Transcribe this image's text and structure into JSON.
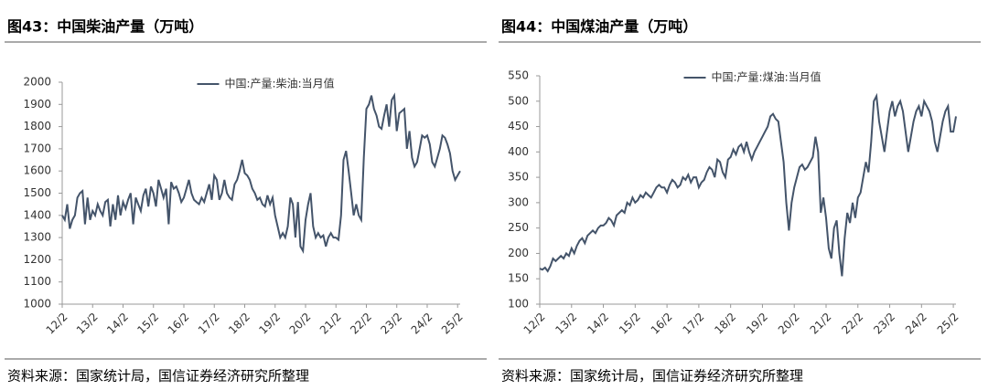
{
  "chart_data": [
    {
      "type": "line",
      "title": "图43：中国柴油产量（万吨）",
      "source": "资料来源：国家统计局，国信证券经济研究所整理",
      "categories": [
        "12/2",
        null,
        null,
        null,
        null,
        null,
        null,
        null,
        null,
        null,
        null,
        null,
        "13/2",
        null,
        null,
        null,
        null,
        null,
        null,
        null,
        null,
        null,
        null,
        null,
        "14/2",
        null,
        null,
        null,
        null,
        null,
        null,
        null,
        null,
        null,
        null,
        null,
        "15/2",
        null,
        null,
        null,
        null,
        null,
        null,
        null,
        null,
        null,
        null,
        null,
        "16/2",
        null,
        null,
        null,
        null,
        null,
        null,
        null,
        null,
        null,
        null,
        null,
        "17/2",
        null,
        null,
        null,
        null,
        null,
        null,
        null,
        null,
        null,
        null,
        null,
        "18/2",
        null,
        null,
        null,
        null,
        null,
        null,
        null,
        null,
        null,
        null,
        null,
        "19/2",
        null,
        null,
        null,
        null,
        null,
        null,
        null,
        null,
        null,
        null,
        null,
        "20/2",
        null,
        null,
        null,
        null,
        null,
        null,
        null,
        null,
        null,
        null,
        null,
        "21/2",
        null,
        null,
        null,
        null,
        null,
        null,
        null,
        null,
        null,
        null,
        null,
        "22/2",
        null,
        null,
        null,
        null,
        null,
        null,
        null,
        null,
        null,
        null,
        null,
        "23/2",
        null,
        null,
        null,
        null,
        null,
        null,
        null,
        null,
        null,
        null,
        null,
        "24/2",
        null,
        null,
        null,
        null,
        null,
        null,
        null,
        null,
        null,
        null,
        null,
        "25/2",
        null
      ],
      "series": [
        {
          "name": "中国:产量:柴油:当月值",
          "color": "#44546a",
          "values": [
            1400,
            1380,
            1450,
            1340,
            1380,
            1400,
            1480,
            1500,
            1510,
            1360,
            1480,
            1380,
            1420,
            1400,
            1450,
            1420,
            1400,
            1460,
            1470,
            1350,
            1450,
            1380,
            1490,
            1400,
            1460,
            1430,
            1470,
            1500,
            1360,
            1480,
            1450,
            1420,
            1490,
            1520,
            1440,
            1530,
            1500,
            1440,
            1560,
            1520,
            1480,
            1520,
            1360,
            1550,
            1520,
            1530,
            1500,
            1460,
            1480,
            1520,
            1560,
            1500,
            1470,
            1460,
            1450,
            1480,
            1460,
            1500,
            1540,
            1470,
            1580,
            1560,
            1470,
            1500,
            1560,
            1500,
            1480,
            1470,
            1540,
            1560,
            1600,
            1650,
            1590,
            1580,
            1560,
            1520,
            1500,
            1470,
            1480,
            1450,
            1440,
            1490,
            1450,
            1480,
            1400,
            1350,
            1300,
            1320,
            1300,
            1350,
            1480,
            1450,
            1300,
            1460,
            1260,
            1240,
            1380,
            1450,
            1500,
            1350,
            1300,
            1320,
            1300,
            1310,
            1260,
            1300,
            1320,
            1300,
            1300,
            1290,
            1400,
            1650,
            1690,
            1600,
            1500,
            1400,
            1450,
            1400,
            1380,
            1660,
            1880,
            1900,
            1940,
            1880,
            1850,
            1800,
            1790,
            1850,
            1900,
            1800,
            1920,
            1940,
            1780,
            1860,
            1870,
            1880,
            1700,
            1780,
            1660,
            1620,
            1640,
            1700,
            1760,
            1750,
            1760,
            1720,
            1640,
            1620,
            1660,
            1700,
            1760,
            1750,
            1720,
            1680,
            1600,
            1560,
            1580,
            1600
          ]
        }
      ],
      "ylim": [
        1000,
        2000
      ],
      "yticks": [
        1000,
        1100,
        1200,
        1300,
        1400,
        1500,
        1600,
        1700,
        1800,
        1900,
        2000
      ]
    },
    {
      "type": "line",
      "title": "图44：中国煤油产量（万吨）",
      "source": "资料来源：国家统计局，国信证券经济研究所整理",
      "categories": [
        "12/2",
        null,
        null,
        null,
        null,
        null,
        null,
        null,
        null,
        null,
        null,
        null,
        "13/2",
        null,
        null,
        null,
        null,
        null,
        null,
        null,
        null,
        null,
        null,
        null,
        "14/2",
        null,
        null,
        null,
        null,
        null,
        null,
        null,
        null,
        null,
        null,
        null,
        "15/2",
        null,
        null,
        null,
        null,
        null,
        null,
        null,
        null,
        null,
        null,
        null,
        "16/2",
        null,
        null,
        null,
        null,
        null,
        null,
        null,
        null,
        null,
        null,
        null,
        "17/2",
        null,
        null,
        null,
        null,
        null,
        null,
        null,
        null,
        null,
        null,
        null,
        "18/2",
        null,
        null,
        null,
        null,
        null,
        null,
        null,
        null,
        null,
        null,
        null,
        "19/2",
        null,
        null,
        null,
        null,
        null,
        null,
        null,
        null,
        null,
        null,
        null,
        "20/2",
        null,
        null,
        null,
        null,
        null,
        null,
        null,
        null,
        null,
        null,
        null,
        "21/2",
        null,
        null,
        null,
        null,
        null,
        null,
        null,
        null,
        null,
        null,
        null,
        "22/2",
        null,
        null,
        null,
        null,
        null,
        null,
        null,
        null,
        null,
        null,
        null,
        "23/2",
        null,
        null,
        null,
        null,
        null,
        null,
        null,
        null,
        null,
        null,
        null,
        "24/2",
        null,
        null,
        null,
        null,
        null,
        null,
        null,
        null,
        null,
        null,
        null,
        "25/2",
        null
      ],
      "series": [
        {
          "name": "中国:产量:煤油:当月值",
          "color": "#44546a",
          "values": [
            170,
            168,
            172,
            165,
            175,
            190,
            185,
            190,
            195,
            190,
            200,
            195,
            210,
            200,
            215,
            225,
            230,
            220,
            235,
            240,
            245,
            240,
            250,
            255,
            255,
            260,
            270,
            265,
            255,
            275,
            280,
            285,
            280,
            300,
            295,
            310,
            300,
            305,
            315,
            310,
            320,
            315,
            310,
            320,
            330,
            335,
            330,
            330,
            320,
            335,
            345,
            340,
            330,
            335,
            350,
            345,
            355,
            340,
            350,
            350,
            330,
            340,
            345,
            360,
            370,
            365,
            350,
            385,
            380,
            360,
            350,
            385,
            390,
            405,
            395,
            410,
            415,
            400,
            420,
            400,
            385,
            400,
            410,
            420,
            430,
            440,
            450,
            470,
            475,
            465,
            460,
            420,
            380,
            300,
            245,
            300,
            330,
            350,
            370,
            375,
            365,
            370,
            380,
            390,
            430,
            400,
            280,
            310,
            270,
            210,
            190,
            250,
            265,
            200,
            155,
            230,
            280,
            260,
            300,
            270,
            310,
            320,
            350,
            380,
            360,
            420,
            500,
            510,
            460,
            430,
            400,
            440,
            480,
            500,
            470,
            490,
            500,
            480,
            440,
            400,
            430,
            460,
            480,
            490,
            470,
            500,
            490,
            480,
            460,
            420,
            400,
            430,
            460,
            480,
            490,
            440,
            440,
            470
          ]
        }
      ],
      "ylim": [
        100,
        550
      ],
      "yticks": [
        100,
        150,
        200,
        250,
        300,
        350,
        400,
        450,
        500,
        550
      ]
    }
  ]
}
